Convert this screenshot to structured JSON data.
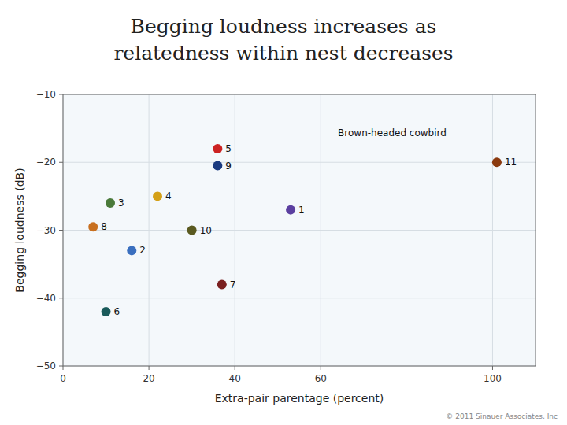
{
  "chart_data": {
    "type": "scatter",
    "title": [
      "Begging loudness increases as",
      "relatedness within nest decreases"
    ],
    "x_label": "Extra-pair parentage (percent)",
    "y_label": "Begging loudness (dB)",
    "x": [
      53,
      16,
      11,
      22,
      36,
      10,
      37,
      7,
      36,
      30,
      101
    ],
    "values": [
      -27,
      -33,
      -26,
      -25,
      -18,
      -42,
      -38,
      -29.5,
      -20.5,
      -30,
      -20
    ],
    "labels": [
      "1",
      "2",
      "3",
      "4",
      "5",
      "6",
      "7",
      "8",
      "9",
      "10",
      "11"
    ],
    "colors": [
      "#5b3fa0",
      "#3a6fbf",
      "#4a7a3a",
      "#d4a017",
      "#cc2222",
      "#1a5a5a",
      "#7a2020",
      "#c87020",
      "#1a3a80",
      "#5a5a20",
      "#8b3a0f"
    ],
    "annotations": [
      {
        "text": "Brown-headed cowbird",
        "x": 64,
        "y": -16.5
      }
    ],
    "source": "© 2011 Sinauer Associates, Inc",
    "xlim": [
      0,
      110
    ],
    "ylim": [
      -50,
      -10
    ],
    "xticks": [
      0,
      20,
      40,
      60,
      100
    ],
    "yticks": [
      {
        "value": -50,
        "label": "−50"
      },
      {
        "value": -40,
        "label": "−40"
      },
      {
        "value": -30,
        "label": "−30"
      },
      {
        "value": -20,
        "label": "−20"
      },
      {
        "value": -10,
        "label": "−10"
      }
    ],
    "grid": true
  }
}
